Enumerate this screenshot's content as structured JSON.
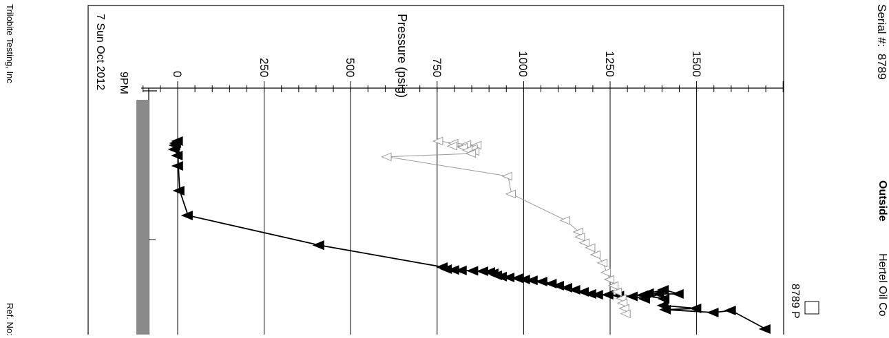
{
  "page": {
    "serial_label": "Serial #:",
    "serial_value": "8789",
    "location": "Outside",
    "company": "Hertel Oil Co",
    "footer_company": "Trilobite Testing, Inc",
    "ref_label": "Ref. No:"
  },
  "chart_data": {
    "type": "line",
    "xlabel": "",
    "ylabel": "Pressure (psig)",
    "ylim": [
      -180,
      1810
    ],
    "y_ticks": [
      0,
      250,
      500,
      750,
      1000,
      1250,
      1500
    ],
    "time_ticks": [
      {
        "label": "9PM",
        "date": "7 Sun Oct 2012"
      }
    ],
    "legend": [
      {
        "label": "8789 P"
      }
    ],
    "grid": "vertical",
    "series": [
      {
        "name": "",
        "color": "#000000",
        "marker": "filled-triangle",
        "points": [
          [
            0,
            1.5
          ],
          [
            5,
            -4
          ],
          [
            10,
            -6
          ],
          [
            20,
            -8
          ],
          [
            35,
            1
          ],
          [
            60,
            2
          ],
          [
            120,
            6
          ],
          [
            180,
            30
          ],
          [
            252,
            410
          ],
          [
            305,
            767
          ],
          [
            310,
            779
          ],
          [
            312,
            800
          ],
          [
            313,
            822
          ],
          [
            314,
            855
          ],
          [
            315,
            884
          ],
          [
            317,
            904
          ],
          [
            320,
            914
          ],
          [
            325,
            924
          ],
          [
            328,
            938
          ],
          [
            330,
            960
          ],
          [
            332,
            985
          ],
          [
            335,
            1005
          ],
          [
            337,
            1027
          ],
          [
            340,
            1055
          ],
          [
            345,
            1082
          ],
          [
            350,
            1103
          ],
          [
            355,
            1127
          ],
          [
            360,
            1150
          ],
          [
            365,
            1175
          ],
          [
            370,
            1196
          ],
          [
            372,
            1216
          ],
          [
            372,
            1246
          ],
          [
            374,
            1277
          ],
          [
            376,
            1316
          ],
          [
            382,
            1352
          ],
          [
            370,
            1393
          ],
          [
            370,
            1449
          ],
          [
            360,
            1406
          ],
          [
            368,
            1363
          ],
          [
            373,
            1346
          ],
          [
            382,
            1408
          ],
          [
            398,
            1405
          ],
          [
            405,
            1500
          ],
          [
            408,
            1412
          ],
          [
            415,
            1550
          ],
          [
            410,
            1600
          ],
          [
            455,
            1700
          ]
        ]
      },
      {
        "name": "",
        "color": "#999999",
        "marker": "hollow-triangle",
        "points": [
          [
            0,
            755
          ],
          [
            5,
            799
          ],
          [
            8,
            836
          ],
          [
            10,
            866
          ],
          [
            12,
            796
          ],
          [
            15,
            826
          ],
          [
            18,
            855
          ],
          [
            22,
            840
          ],
          [
            25,
            860
          ],
          [
            30,
            850
          ],
          [
            38,
            606
          ],
          [
            85,
            955
          ],
          [
            128,
            965
          ],
          [
            192,
            1122
          ],
          [
            220,
            1160
          ],
          [
            232,
            1165
          ],
          [
            246,
            1178
          ],
          [
            258,
            1195
          ],
          [
            275,
            1210
          ],
          [
            295,
            1230
          ],
          [
            318,
            1240
          ],
          [
            335,
            1250
          ],
          [
            350,
            1262
          ],
          [
            365,
            1272
          ],
          [
            381,
            1285
          ],
          [
            392,
            1288
          ],
          [
            405,
            1293
          ],
          [
            418,
            1297
          ]
        ]
      }
    ]
  }
}
